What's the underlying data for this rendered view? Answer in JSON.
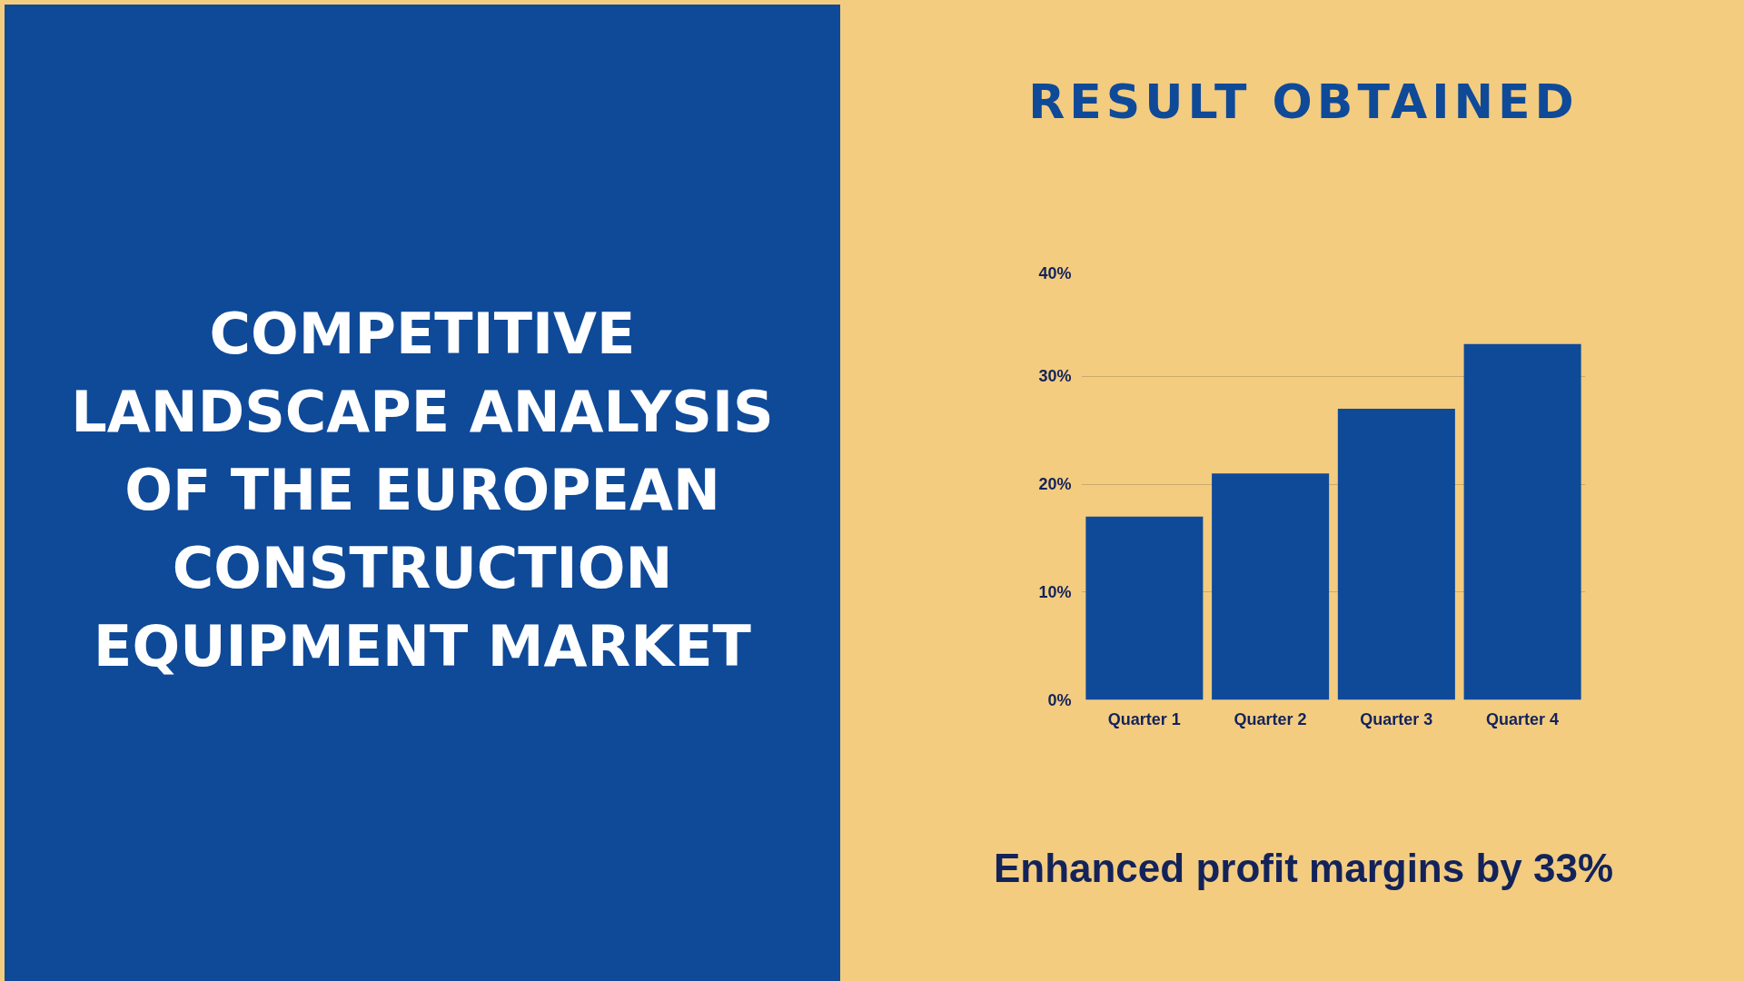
{
  "chart_data": {
    "type": "bar",
    "title": "RESULT OBTAINED",
    "annotations": [
      "COMPETITIVE LANDSCAPE ANALYSIS OF THE EUROPEAN CONSTRUCTION EQUIPMENT MARKET",
      "Enhanced profit margins by 33%"
    ],
    "categories": [
      "Quarter 1",
      "Quarter 2",
      "Quarter 3",
      "Quarter 4"
    ],
    "values": [
      17,
      21,
      27,
      33
    ],
    "color": "#0f4a99",
    "ylim": [
      0,
      40
    ],
    "yticks": [
      {
        "value": 0,
        "label": "0%"
      },
      {
        "value": 10,
        "label": "10%"
      },
      {
        "value": 20,
        "label": "20%"
      },
      {
        "value": 30,
        "label": "30%"
      },
      {
        "value": 40,
        "label": "40%"
      }
    ],
    "grid": "y"
  }
}
